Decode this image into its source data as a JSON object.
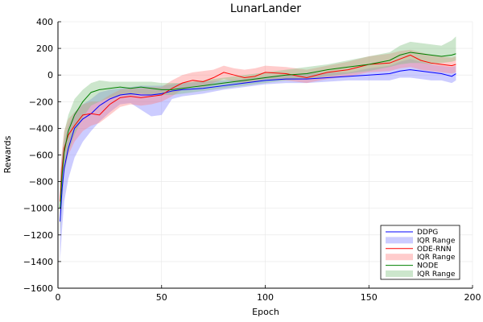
{
  "chart_data": {
    "type": "line",
    "title": "LunarLander",
    "xlabel": "Epoch",
    "ylabel": "Rewards",
    "xlim": [
      0,
      200
    ],
    "ylim": [
      -1600,
      400
    ],
    "xticks": [
      0,
      50,
      100,
      150,
      200
    ],
    "yticks": [
      -1600,
      -1400,
      -1200,
      -1000,
      -800,
      -600,
      -400,
      -200,
      0,
      200,
      400
    ],
    "grid": true,
    "legend_position": "bottom-right",
    "series": [
      {
        "name": "DDPG",
        "band_name": "IQR Range",
        "color": "#0000ff",
        "band_color": "#8080ff",
        "x": [
          1,
          2,
          3,
          5,
          8,
          12,
          16,
          20,
          25,
          30,
          35,
          40,
          45,
          50,
          55,
          60,
          70,
          80,
          90,
          100,
          110,
          120,
          130,
          140,
          150,
          160,
          165,
          170,
          175,
          180,
          185,
          190,
          192
        ],
        "median": [
          -1100,
          -850,
          -700,
          -550,
          -400,
          -330,
          -290,
          -230,
          -180,
          -150,
          -140,
          -150,
          -150,
          -140,
          -120,
          -110,
          -100,
          -80,
          -60,
          -40,
          -30,
          -30,
          -20,
          -10,
          0,
          10,
          30,
          40,
          30,
          20,
          10,
          -10,
          10
        ],
        "lower": [
          -1400,
          -1150,
          -950,
          -780,
          -620,
          -500,
          -420,
          -350,
          -280,
          -220,
          -210,
          -260,
          -310,
          -300,
          -180,
          -160,
          -140,
          -110,
          -90,
          -70,
          -60,
          -60,
          -50,
          -40,
          -40,
          -40,
          -20,
          -20,
          -30,
          -40,
          -40,
          -60,
          -40
        ],
        "upper": [
          -800,
          -600,
          -500,
          -380,
          -280,
          -220,
          -180,
          -130,
          -110,
          -100,
          -90,
          -80,
          -80,
          -80,
          -70,
          -60,
          -50,
          -40,
          -30,
          -10,
          0,
          10,
          20,
          20,
          50,
          70,
          100,
          120,
          100,
          80,
          70,
          60,
          70
        ]
      },
      {
        "name": "ODE-RNN",
        "band_name": "IQR Range",
        "color": "#ff0000",
        "band_color": "#ff8080",
        "x": [
          1,
          2,
          3,
          5,
          8,
          12,
          16,
          20,
          25,
          30,
          35,
          40,
          45,
          50,
          55,
          60,
          65,
          70,
          75,
          80,
          85,
          90,
          95,
          100,
          110,
          120,
          130,
          140,
          150,
          160,
          165,
          170,
          175,
          180,
          185,
          190,
          192
        ],
        "median": [
          -950,
          -700,
          -550,
          -450,
          -380,
          -300,
          -290,
          -300,
          -220,
          -170,
          -160,
          -170,
          -160,
          -150,
          -100,
          -60,
          -40,
          -50,
          -20,
          20,
          0,
          -20,
          -10,
          20,
          10,
          -20,
          20,
          40,
          80,
          90,
          120,
          150,
          110,
          90,
          80,
          70,
          80
        ],
        "lower": [
          -1150,
          -900,
          -720,
          -600,
          -500,
          -420,
          -380,
          -360,
          -300,
          -240,
          -220,
          -230,
          -220,
          -200,
          -160,
          -110,
          -90,
          -90,
          -60,
          -30,
          -50,
          -60,
          -50,
          -30,
          -40,
          -60,
          -30,
          -10,
          20,
          30,
          50,
          60,
          40,
          30,
          20,
          10,
          20
        ],
        "upper": [
          -750,
          -550,
          -420,
          -330,
          -280,
          -220,
          -200,
          -200,
          -150,
          -110,
          -100,
          -100,
          -90,
          -90,
          -40,
          0,
          20,
          30,
          40,
          70,
          50,
          40,
          50,
          70,
          60,
          40,
          70,
          100,
          140,
          160,
          180,
          190,
          170,
          150,
          140,
          130,
          140
        ]
      },
      {
        "name": "NODE",
        "band_name": "IQR Range",
        "color": "#008000",
        "band_color": "#80c080",
        "x": [
          1,
          2,
          3,
          5,
          8,
          12,
          16,
          20,
          25,
          30,
          35,
          40,
          45,
          50,
          55,
          60,
          70,
          80,
          90,
          100,
          110,
          120,
          130,
          140,
          150,
          160,
          165,
          170,
          175,
          180,
          185,
          190,
          192
        ],
        "median": [
          -1000,
          -750,
          -580,
          -420,
          -300,
          -200,
          -130,
          -110,
          -100,
          -90,
          -100,
          -90,
          -100,
          -110,
          -110,
          -100,
          -80,
          -60,
          -40,
          -20,
          0,
          10,
          40,
          60,
          80,
          110,
          150,
          170,
          160,
          150,
          140,
          150,
          160
        ],
        "lower": [
          -1200,
          -950,
          -750,
          -580,
          -450,
          -320,
          -230,
          -200,
          -170,
          -150,
          -150,
          -140,
          -150,
          -150,
          -150,
          -140,
          -120,
          -100,
          -80,
          -60,
          -40,
          -30,
          -10,
          10,
          30,
          60,
          80,
          90,
          90,
          80,
          90,
          100,
          110
        ],
        "upper": [
          -800,
          -600,
          -430,
          -300,
          -180,
          -110,
          -60,
          -40,
          -50,
          -50,
          -50,
          -50,
          -50,
          -60,
          -60,
          -60,
          -40,
          -20,
          0,
          20,
          40,
          60,
          80,
          110,
          140,
          170,
          220,
          250,
          240,
          230,
          220,
          260,
          290
        ]
      }
    ]
  }
}
